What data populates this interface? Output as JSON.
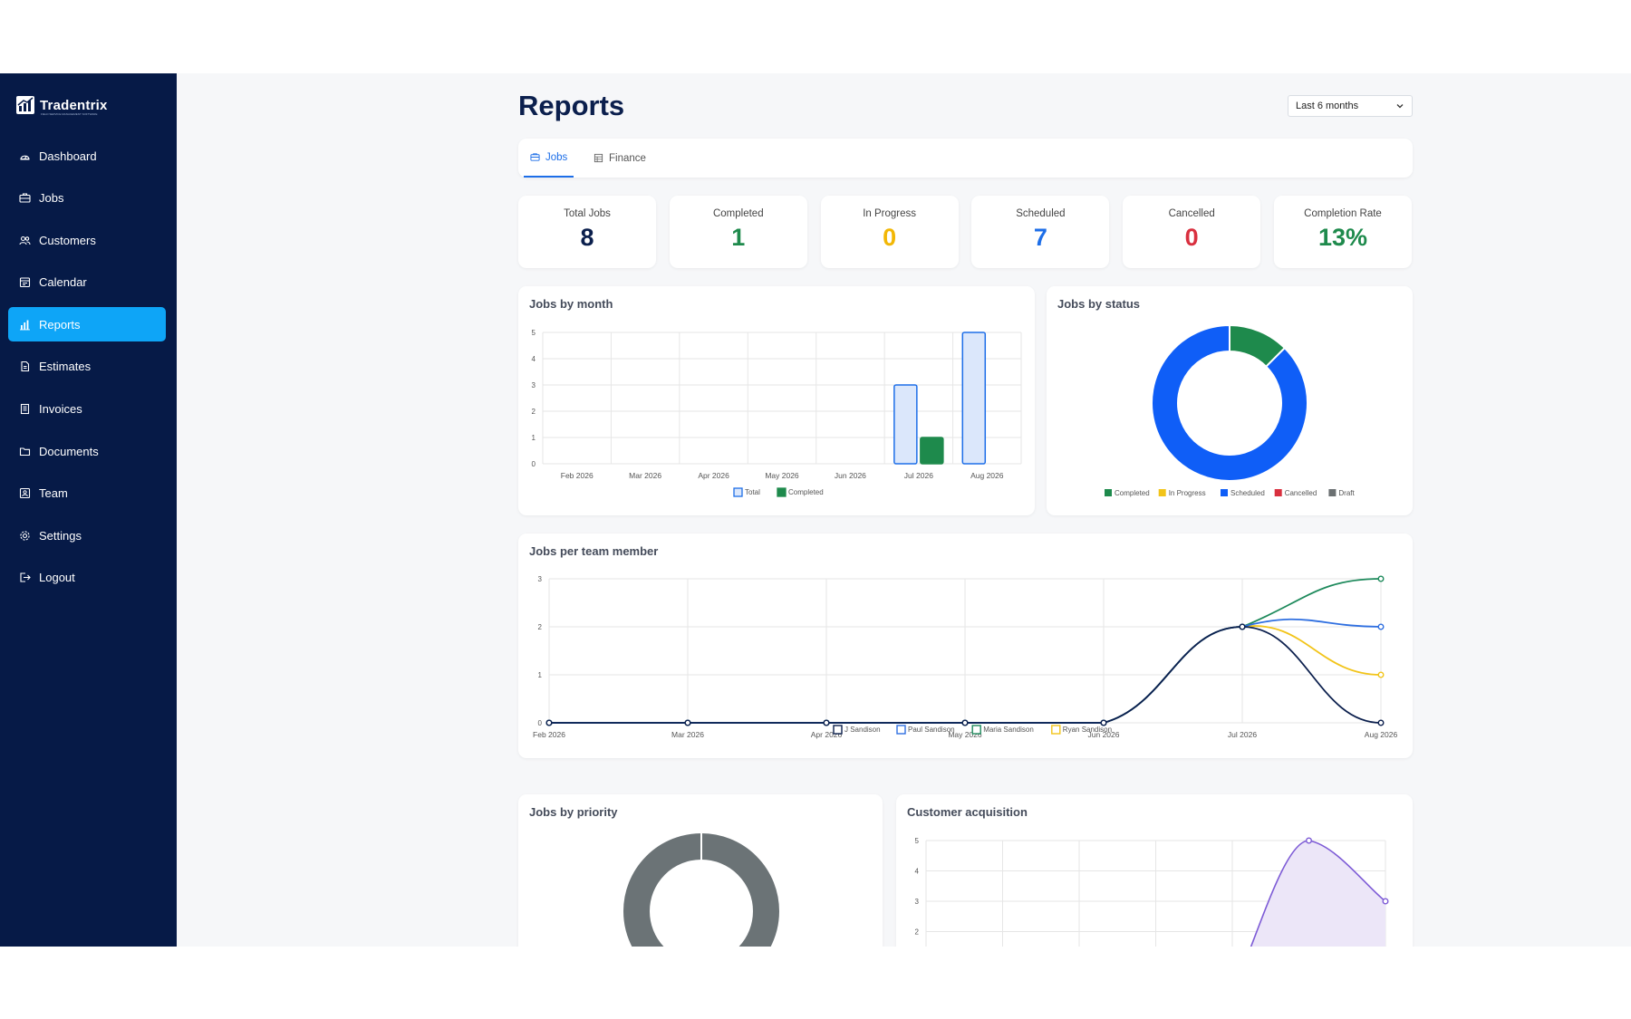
{
  "brand": {
    "name": "Tradentrix",
    "tagline": "FIELD SERVICE MANAGEMENT SOFTWARE"
  },
  "sidebar": {
    "items": [
      {
        "label": "Dashboard",
        "icon": "dashboard-icon",
        "active": false
      },
      {
        "label": "Jobs",
        "icon": "briefcase-icon",
        "active": false
      },
      {
        "label": "Customers",
        "icon": "users-icon",
        "active": false
      },
      {
        "label": "Calendar",
        "icon": "calendar-icon",
        "active": false
      },
      {
        "label": "Reports",
        "icon": "bar-chart-icon",
        "active": true
      },
      {
        "label": "Estimates",
        "icon": "file-icon",
        "active": false
      },
      {
        "label": "Invoices",
        "icon": "invoice-icon",
        "active": false
      },
      {
        "label": "Documents",
        "icon": "folder-icon",
        "active": false
      },
      {
        "label": "Team",
        "icon": "id-card-icon",
        "active": false
      },
      {
        "label": "Settings",
        "icon": "gear-icon",
        "active": false
      },
      {
        "label": "Logout",
        "icon": "logout-icon",
        "active": false
      }
    ]
  },
  "header": {
    "title": "Reports",
    "range_selected": "Last 6 months"
  },
  "tabs": [
    {
      "label": "Jobs",
      "icon": "briefcase-icon",
      "active": true
    },
    {
      "label": "Finance",
      "icon": "table-icon",
      "active": false
    }
  ],
  "stats": [
    {
      "label": "Total Jobs",
      "value": "8",
      "color": "#0b1f4d"
    },
    {
      "label": "Completed",
      "value": "1",
      "color": "#1e8a4c"
    },
    {
      "label": "In Progress",
      "value": "0",
      "color": "#f2b705"
    },
    {
      "label": "Scheduled",
      "value": "7",
      "color": "#1d6ee8"
    },
    {
      "label": "Cancelled",
      "value": "0",
      "color": "#d9303f"
    },
    {
      "label": "Completion Rate",
      "value": "13%",
      "color": "#1e8a4c"
    }
  ],
  "cards": {
    "jobs_by_month": "Jobs by month",
    "jobs_by_status": "Jobs by status",
    "jobs_per_member": "Jobs per team member",
    "jobs_by_priority": "Jobs by priority",
    "customer_acquisition": "Customer acquisition"
  },
  "chart_data": [
    {
      "id": "jobs_by_month",
      "type": "bar",
      "categories": [
        "Feb 2026",
        "Mar 2026",
        "Apr 2026",
        "May 2026",
        "Jun 2026",
        "Jul 2026",
        "Aug 2026"
      ],
      "series": [
        {
          "name": "Total",
          "values": [
            0,
            0,
            0,
            0,
            0,
            3,
            5
          ],
          "color": "#1d6ee8",
          "fill": "#dbe7fb"
        },
        {
          "name": "Completed",
          "values": [
            0,
            0,
            0,
            0,
            0,
            1,
            0
          ],
          "color": "#1e8a4c",
          "fill": "#1e8a4c"
        }
      ],
      "yticks": [
        "0",
        "1",
        "2",
        "3",
        "4",
        "5"
      ],
      "ylim": [
        0,
        5
      ],
      "grid": true,
      "legend": "bottom"
    },
    {
      "id": "jobs_by_status",
      "type": "pie",
      "donut": true,
      "labels": [
        "Completed",
        "In Progress",
        "Scheduled",
        "Cancelled",
        "Draft"
      ],
      "values": [
        1,
        0,
        7,
        0,
        0
      ],
      "colors": [
        "#1e8a4c",
        "#f2c419",
        "#0f5ef7",
        "#d9303f",
        "#6b7072"
      ],
      "legend": "bottom"
    },
    {
      "id": "jobs_per_member",
      "type": "line",
      "x": [
        "Feb 2026",
        "Mar 2026",
        "Apr 2026",
        "May 2026",
        "Jun 2026",
        "Jul 2026",
        "Aug 2026"
      ],
      "series": [
        {
          "name": "J Sandison",
          "values": [
            0,
            0,
            0,
            0,
            0,
            2,
            0
          ],
          "color": "#0b1f4d"
        },
        {
          "name": "Paul Sandison",
          "values": [
            0,
            0,
            0,
            0,
            0,
            2,
            2
          ],
          "color": "#2f6fe0"
        },
        {
          "name": "Maria Sandison",
          "values": [
            0,
            0,
            0,
            0,
            0,
            2,
            3
          ],
          "color": "#1e8a5c"
        },
        {
          "name": "Ryan Sandison",
          "values": [
            0,
            0,
            0,
            0,
            0,
            2,
            1
          ],
          "color": "#f2c419"
        }
      ],
      "yticks": [
        "0",
        "1",
        "2",
        "3"
      ],
      "ylim": [
        0,
        3
      ],
      "grid": true,
      "legend": "bottom"
    },
    {
      "id": "jobs_by_priority",
      "type": "pie",
      "donut": true,
      "values": [
        1
      ],
      "colors": [
        "#6b7376"
      ]
    },
    {
      "id": "customer_acquisition",
      "type": "area",
      "y_visible": [
        2,
        3,
        4,
        5
      ],
      "yticks": [
        "2",
        "3",
        "4",
        "5"
      ],
      "peak_value": 5,
      "last_value": 3,
      "color": "#7d5bd6",
      "fill": "#ece6f8",
      "grid": true
    }
  ]
}
